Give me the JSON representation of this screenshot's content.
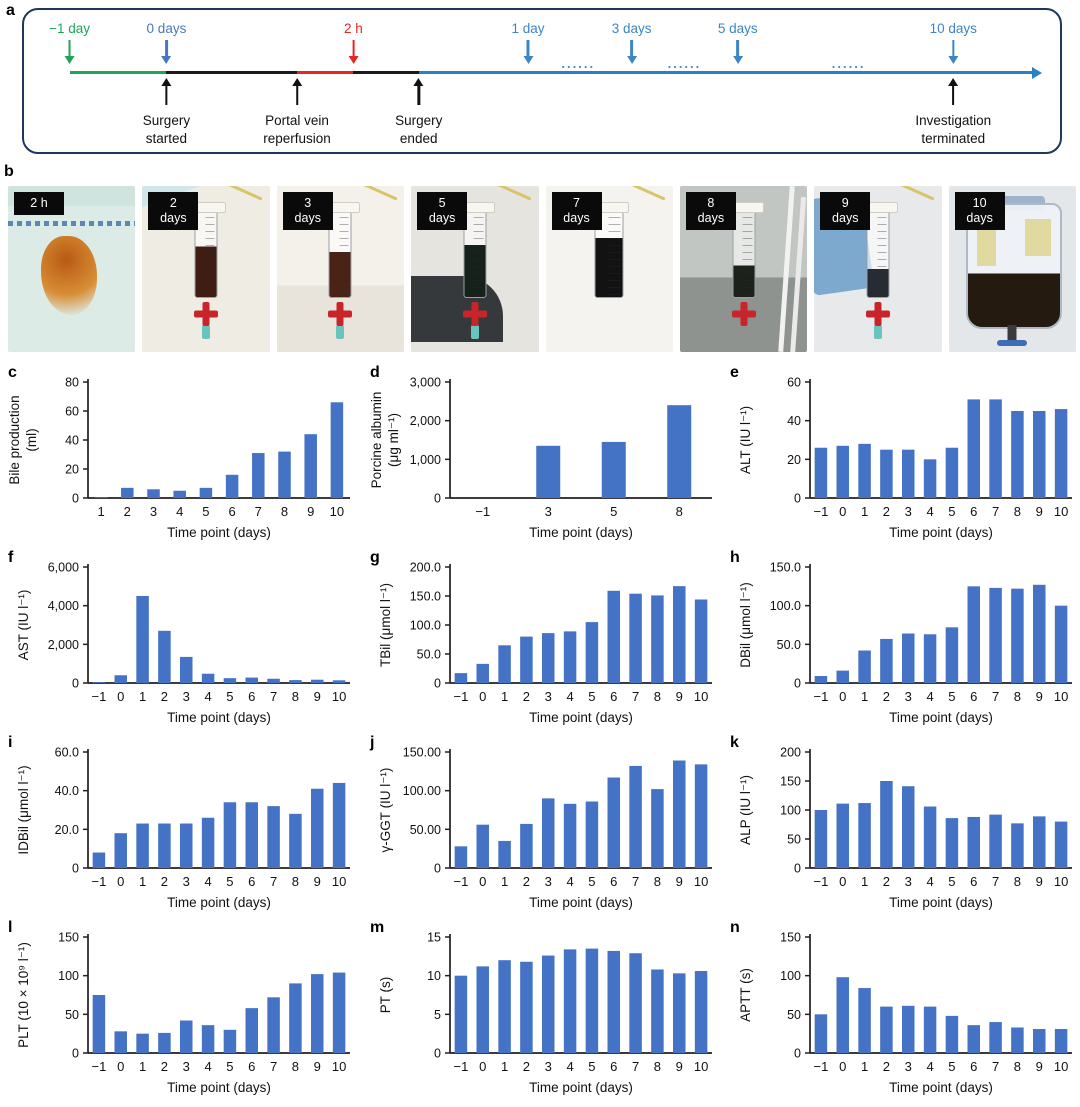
{
  "panels": {
    "a": "a",
    "b": "b"
  },
  "colors": {
    "bar": "#4472c4",
    "axis": "#231f20",
    "timeline_green": "#1fa45c",
    "timeline_blue_marker": "#4678c2",
    "timeline_blue_line": "#2980c4",
    "timeline_red": "#e8251f",
    "timeline_border": "#20365c"
  },
  "timeline": {
    "top_markers": [
      {
        "label": "−1 day",
        "color": "#1fa45c"
      },
      {
        "label": "0 days",
        "color": "#4678c2"
      },
      {
        "label": "2 h",
        "color": "#e8251f"
      },
      {
        "label": "1 day",
        "color": "#3c85c6"
      },
      {
        "label": "3 days",
        "color": "#3c85c6"
      },
      {
        "label": "5 days",
        "color": "#3c85c6"
      },
      {
        "label": "10 days",
        "color": "#3c85c6"
      }
    ],
    "dots": [
      {
        "text": "......"
      },
      {
        "text": "......"
      },
      {
        "text": "......"
      }
    ],
    "bottom_markers": [
      {
        "line1": "Surgery",
        "line2": "started"
      },
      {
        "line1": "Portal vein",
        "line2": "reperfusion"
      },
      {
        "line1": "Surgery",
        "line2": "ended"
      },
      {
        "line1": "Investigation",
        "line2": "terminated"
      }
    ]
  },
  "photos": [
    {
      "l1": "2 h",
      "l2": ""
    },
    {
      "l1": "2",
      "l2": "days"
    },
    {
      "l1": "3",
      "l2": "days"
    },
    {
      "l1": "5",
      "l2": "days"
    },
    {
      "l1": "7",
      "l2": "days"
    },
    {
      "l1": "8",
      "l2": "days"
    },
    {
      "l1": "9",
      "l2": "days"
    },
    {
      "l1": "10",
      "l2": "days"
    }
  ],
  "chart_data": [
    {
      "id": "c",
      "type": "bar",
      "ylabel": [
        "Bile production",
        "(ml)"
      ],
      "ylim": [
        0,
        80
      ],
      "yticks": [
        0,
        20,
        40,
        60,
        80
      ],
      "ytick_labels": [
        "0",
        "20",
        "40",
        "60",
        "80"
      ],
      "categories": [
        "1",
        "2",
        "3",
        "4",
        "5",
        "6",
        "7",
        "8",
        "9",
        "10"
      ],
      "values": [
        0.5,
        7,
        6,
        5,
        7,
        16,
        31,
        32,
        44,
        66
      ],
      "xlabel": "Time point (days)"
    },
    {
      "id": "d",
      "type": "bar",
      "ylabel": [
        "Porcine albumin",
        "(μg ml⁻¹)"
      ],
      "ylim": [
        0,
        3000
      ],
      "yticks": [
        0,
        1000,
        2000,
        3000
      ],
      "ytick_labels": [
        "0",
        "1,000",
        "2,000",
        "3,000"
      ],
      "categories": [
        "−1",
        "3",
        "5",
        "8"
      ],
      "values": [
        0,
        1350,
        1450,
        2400
      ],
      "xlabel": "Time point (days)"
    },
    {
      "id": "e",
      "type": "bar",
      "ylabel": [
        "ALT (IU l⁻¹)"
      ],
      "ylim": [
        0,
        60
      ],
      "yticks": [
        0,
        20,
        40,
        60
      ],
      "ytick_labels": [
        "0",
        "20",
        "40",
        "60"
      ],
      "categories": [
        "−1",
        "0",
        "1",
        "2",
        "3",
        "4",
        "5",
        "6",
        "7",
        "8",
        "9",
        "10"
      ],
      "values": [
        26,
        27,
        28,
        25,
        25,
        20,
        26,
        51,
        51,
        45,
        45,
        46
      ],
      "xlabel": "Time point (days)"
    },
    {
      "id": "f",
      "type": "bar",
      "ylabel": [
        "AST (IU l⁻¹)"
      ],
      "ylim": [
        0,
        6000
      ],
      "yticks": [
        0,
        2000,
        4000,
        6000
      ],
      "ytick_labels": [
        "0",
        "2,000",
        "4,000",
        "6,000"
      ],
      "categories": [
        "−1",
        "0",
        "1",
        "2",
        "3",
        "4",
        "5",
        "6",
        "7",
        "8",
        "9",
        "10"
      ],
      "values": [
        30,
        400,
        4500,
        2700,
        1350,
        480,
        250,
        280,
        220,
        150,
        170,
        140
      ],
      "xlabel": "Time point (days)"
    },
    {
      "id": "g",
      "type": "bar",
      "ylabel": [
        "TBil (μmol l⁻¹)"
      ],
      "ylim": [
        0,
        200
      ],
      "yticks": [
        0,
        50,
        100,
        150,
        200
      ],
      "ytick_labels": [
        "0",
        "50.0",
        "100.0",
        "150.0",
        "200.0"
      ],
      "categories": [
        "−1",
        "0",
        "1",
        "2",
        "3",
        "4",
        "5",
        "6",
        "7",
        "8",
        "9",
        "10"
      ],
      "values": [
        17,
        33,
        65,
        80,
        86,
        89,
        105,
        159,
        154,
        151,
        167,
        144
      ],
      "xlabel": "Time point (days)"
    },
    {
      "id": "h",
      "type": "bar",
      "ylabel": [
        "DBil (μmol l⁻¹)"
      ],
      "ylim": [
        0,
        150
      ],
      "yticks": [
        0,
        50,
        100,
        150
      ],
      "ytick_labels": [
        "0",
        "50.0",
        "100.0",
        "150.0"
      ],
      "categories": [
        "−1",
        "0",
        "1",
        "2",
        "3",
        "4",
        "5",
        "6",
        "7",
        "8",
        "9",
        "10"
      ],
      "values": [
        9,
        16,
        42,
        57,
        64,
        63,
        72,
        125,
        123,
        122,
        127,
        100
      ],
      "xlabel": "Time point (days)"
    },
    {
      "id": "i",
      "type": "bar",
      "ylabel": [
        "IDBil (μmol l⁻¹)"
      ],
      "ylim": [
        0,
        60
      ],
      "yticks": [
        0,
        20,
        40,
        60
      ],
      "ytick_labels": [
        "0",
        "20.0",
        "40.0",
        "60.0"
      ],
      "categories": [
        "−1",
        "0",
        "1",
        "2",
        "3",
        "4",
        "5",
        "6",
        "7",
        "8",
        "9",
        "10"
      ],
      "values": [
        8,
        18,
        23,
        23,
        23,
        26,
        34,
        34,
        32,
        28,
        41,
        44
      ],
      "xlabel": "Time point (days)"
    },
    {
      "id": "j",
      "type": "bar",
      "ylabel": [
        "γ-GGT (IU l⁻¹)"
      ],
      "ylim": [
        0,
        150
      ],
      "yticks": [
        0,
        50,
        100,
        150
      ],
      "ytick_labels": [
        "0",
        "50.00",
        "100.00",
        "150.00"
      ],
      "categories": [
        "−1",
        "0",
        "1",
        "2",
        "3",
        "4",
        "5",
        "6",
        "7",
        "8",
        "9",
        "10"
      ],
      "values": [
        28,
        56,
        35,
        57,
        90,
        83,
        86,
        117,
        132,
        102,
        139,
        134
      ],
      "xlabel": "Time point (days)"
    },
    {
      "id": "k",
      "type": "bar",
      "ylabel": [
        "ALP (IU l⁻¹)"
      ],
      "ylim": [
        0,
        200
      ],
      "yticks": [
        0,
        50,
        100,
        150,
        200
      ],
      "ytick_labels": [
        "0",
        "50",
        "100",
        "150",
        "200"
      ],
      "categories": [
        "−1",
        "0",
        "1",
        "2",
        "3",
        "4",
        "5",
        "6",
        "7",
        "8",
        "9",
        "10"
      ],
      "values": [
        100,
        111,
        112,
        150,
        141,
        106,
        86,
        88,
        92,
        77,
        89,
        80
      ],
      "xlabel": "Time point (days)"
    },
    {
      "id": "l",
      "type": "bar",
      "ylabel": [
        "PLT (10 × 10⁹ l⁻¹)"
      ],
      "ylim": [
        0,
        150
      ],
      "yticks": [
        0,
        50,
        100,
        150
      ],
      "ytick_labels": [
        "0",
        "50",
        "100",
        "150"
      ],
      "categories": [
        "−1",
        "0",
        "1",
        "2",
        "3",
        "4",
        "5",
        "6",
        "7",
        "8",
        "9",
        "10"
      ],
      "values": [
        75,
        28,
        25,
        26,
        42,
        36,
        30,
        58,
        72,
        90,
        102,
        104
      ],
      "xlabel": "Time point (days)"
    },
    {
      "id": "m",
      "type": "bar",
      "ylabel": [
        "PT (s)"
      ],
      "ylim": [
        0,
        15
      ],
      "yticks": [
        0,
        5,
        10,
        15
      ],
      "ytick_labels": [
        "0",
        "5",
        "10",
        "15"
      ],
      "categories": [
        "−1",
        "0",
        "1",
        "2",
        "3",
        "4",
        "5",
        "6",
        "7",
        "8",
        "9",
        "10"
      ],
      "values": [
        10,
        11.2,
        12,
        11.8,
        12.6,
        13.4,
        13.5,
        13.2,
        12.9,
        10.8,
        10.3,
        10.6
      ],
      "xlabel": "Time point (days)"
    },
    {
      "id": "n",
      "type": "bar",
      "ylabel": [
        "APTT (s)"
      ],
      "ylim": [
        0,
        150
      ],
      "yticks": [
        0,
        50,
        100,
        150
      ],
      "ytick_labels": [
        "0",
        "50",
        "100",
        "150"
      ],
      "categories": [
        "−1",
        "0",
        "1",
        "2",
        "3",
        "4",
        "5",
        "6",
        "7",
        "8",
        "9",
        "10"
      ],
      "values": [
        50,
        98,
        84,
        60,
        61,
        60,
        48,
        36,
        40,
        33,
        31,
        31
      ],
      "xlabel": "Time point (days)"
    }
  ]
}
